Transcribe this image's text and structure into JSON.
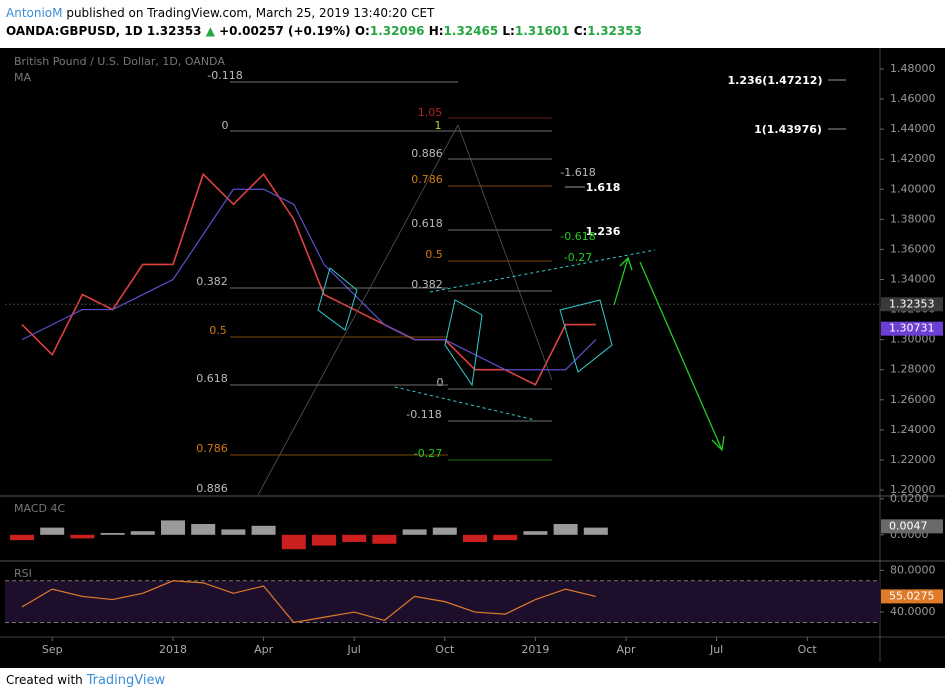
{
  "header": {
    "author": "AntonioM",
    "published": "published on TradingView.com, March 25, 2019 13:40:20 CET",
    "symbol": "OANDA:GBPUSD, 1D",
    "last": "1.32353",
    "up": "▲",
    "change": "+0.00257 (+0.19%)",
    "ohlc": [
      {
        "label": "O:",
        "value": "1.32096"
      },
      {
        "label": "H:",
        "value": "1.32465"
      },
      {
        "label": "L:",
        "value": "1.31601"
      },
      {
        "label": "C:",
        "value": "1.32353"
      }
    ]
  },
  "chart_data": [
    {
      "type": "line",
      "title": "British Pound / U.S. Dollar, 1D, OANDA",
      "x": [
        "2017-08",
        "2017-09",
        "2017-10",
        "2017-11",
        "2017-12",
        "2018-01",
        "2018-02",
        "2018-03",
        "2018-04",
        "2018-05",
        "2018-06",
        "2018-07",
        "2018-08",
        "2018-09",
        "2018-10",
        "2018-11",
        "2018-12",
        "2019-01",
        "2019-02",
        "2019-03"
      ],
      "series": [
        {
          "color": "#e04040",
          "values": [
            1.31,
            1.29,
            1.33,
            1.32,
            1.35,
            1.35,
            1.41,
            1.39,
            1.41,
            1.38,
            1.33,
            1.32,
            1.31,
            1.3,
            1.3,
            1.28,
            1.28,
            1.27,
            1.31,
            1.31
          ]
        },
        {
          "name": "MA",
          "color": "#5b4fc9",
          "values": [
            1.3,
            1.31,
            1.32,
            1.32,
            1.33,
            1.34,
            1.37,
            1.4,
            1.4,
            1.39,
            1.35,
            1.33,
            1.31,
            1.3,
            1.3,
            1.29,
            1.28,
            1.28,
            1.28,
            1.3
          ]
        }
      ],
      "ylim": [
        1.1967,
        1.4926
      ],
      "yticks": [
        {
          "value": 1.2,
          "label": "1.20000"
        },
        {
          "value": 1.22,
          "label": "1.22000"
        },
        {
          "value": 1.24,
          "label": "1.24000"
        },
        {
          "value": 1.26,
          "label": "1.26000"
        },
        {
          "value": 1.28,
          "label": "1.28000"
        },
        {
          "value": 1.3,
          "label": "1.30000"
        },
        {
          "value": 1.32,
          "label": "1.32000"
        },
        {
          "value": 1.34,
          "label": "1.34000"
        },
        {
          "value": 1.36,
          "label": "1.36000"
        },
        {
          "value": 1.38,
          "label": "1.38000"
        },
        {
          "value": 1.4,
          "label": "1.40000"
        },
        {
          "value": 1.42,
          "label": "1.42000"
        },
        {
          "value": 1.44,
          "label": "1.44000"
        },
        {
          "value": 1.46,
          "label": "1.46000"
        },
        {
          "value": 1.48,
          "label": "1.48000"
        }
      ],
      "xticks": [
        {
          "value": "2017-09",
          "label": "Sep"
        },
        {
          "value": "2018-01",
          "label": "2018"
        },
        {
          "value": "2018-04",
          "label": "Apr"
        },
        {
          "value": "2018-07",
          "label": "Jul"
        },
        {
          "value": "2018-10",
          "label": "Oct"
        },
        {
          "value": "2019-01",
          "label": "2019"
        },
        {
          "value": "2019-04",
          "label": "Apr"
        },
        {
          "value": "2019-07",
          "label": "Jul"
        },
        {
          "value": "2019-10",
          "label": "Oct"
        }
      ],
      "tags": [
        {
          "value": 1.32353,
          "label": "1.32353",
          "color": "#3a3a3a"
        },
        {
          "value": 1.30731,
          "label": "1.30731",
          "color": "#6b3fd4"
        }
      ],
      "annotations": [
        {
          "text": "-0.118",
          "color": "#bbbbbb"
        },
        {
          "text": "0",
          "color": "#bbbbbb"
        },
        {
          "text": "1.05",
          "color": "#b02020"
        },
        {
          "text": "1",
          "color": "#c8c830"
        },
        {
          "text": "0.886",
          "color": "#bbbbbb"
        },
        {
          "text": "0.786",
          "color": "#d07a10"
        },
        {
          "text": "0.618",
          "color": "#bbbbbb"
        },
        {
          "text": "0.5",
          "color": "#d07a10"
        },
        {
          "text": "0.382",
          "color": "#bbbbbb"
        },
        {
          "text": "0.382",
          "color": "#bbbbbb"
        },
        {
          "text": "0.5",
          "color": "#d07a10"
        },
        {
          "text": "0.618",
          "color": "#bbbbbb"
        },
        {
          "text": "0.786",
          "color": "#d07a10"
        },
        {
          "text": "0.886",
          "color": "#bbbbbb"
        },
        {
          "text": "0",
          "color": "#bbbbbb"
        },
        {
          "text": "-0.118",
          "color": "#bbbbbb"
        },
        {
          "text": "-0.27",
          "color": "#22cc22"
        },
        {
          "text": "-1.618",
          "color": "#bbbbbb"
        },
        {
          "text": "1.618",
          "color": "#ffffff"
        },
        {
          "text": "1.236",
          "color": "#ffffff"
        },
        {
          "text": "-0.618",
          "color": "#22cc22"
        },
        {
          "text": "-0.27",
          "color": "#22cc22"
        },
        {
          "text": "1.236(1.47212)",
          "color": "#ffffff"
        },
        {
          "text": "1(1.43976)",
          "color": "#ffffff"
        }
      ]
    },
    {
      "type": "bar",
      "title": "MACD 4C",
      "values": [
        -0.003,
        0.004,
        -0.002,
        0.001,
        0.002,
        0.008,
        0.006,
        0.003,
        0.005,
        -0.008,
        -0.006,
        -0.004,
        -0.005,
        0.003,
        0.004,
        -0.004,
        -0.003,
        0.002,
        0.006,
        0.004
      ],
      "colors": {
        "positive": "#9a9a9a",
        "negative": "#cc1f1f"
      },
      "ylim": [
        -0.014,
        0.021
      ],
      "yticks": [
        {
          "value": 0.02,
          "label": "0.0200"
        },
        {
          "value": 0,
          "label": "0.0000"
        }
      ],
      "tags": [
        {
          "value": 0.0047,
          "label": "0.0047",
          "color": "#6a6a6a"
        }
      ]
    },
    {
      "type": "line",
      "title": "RSI",
      "series": [
        {
          "color": "#e07b2a",
          "values": [
            45,
            62,
            55,
            52,
            58,
            70,
            68,
            58,
            65,
            30,
            35,
            40,
            32,
            55,
            50,
            40,
            38,
            52,
            62,
            55
          ]
        }
      ],
      "ylim": [
        18,
        88
      ],
      "yticks": [
        {
          "value": 80,
          "label": "80.0000"
        },
        {
          "value": 40,
          "label": "40.0000"
        }
      ],
      "bands": [
        70,
        30
      ],
      "tags": [
        {
          "value": 55.0275,
          "label": "55.0275",
          "color": "#e07b2a"
        }
      ]
    }
  ],
  "footer": {
    "created": "Created with",
    "brand": "TradingView"
  }
}
